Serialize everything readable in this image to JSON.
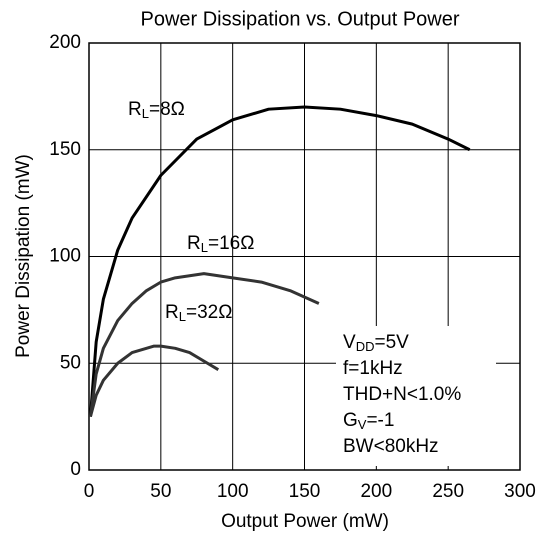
{
  "chart_data": {
    "type": "line",
    "title": "Power Dissipation vs. Output Power",
    "x_label": "Output Power (mW)",
    "y_label": "Power Dissipation (mW)",
    "xlim": [
      0,
      300
    ],
    "xticks": [
      0,
      50,
      100,
      150,
      200,
      250,
      300
    ],
    "ylim": [
      0,
      200
    ],
    "yticks": [
      0,
      50,
      100,
      150,
      200
    ],
    "grid": true,
    "series": [
      {
        "name": [
          {
            "text": "R"
          },
          {
            "text": "L",
            "sub": true
          },
          {
            "text": "=8Ω"
          }
        ],
        "color": "#000000",
        "x": [
          1,
          5,
          10,
          20,
          30,
          50,
          75,
          100,
          125,
          150,
          175,
          200,
          225,
          250,
          265
        ],
        "values": [
          25,
          60,
          80,
          103,
          118,
          138,
          155,
          164,
          169,
          170,
          169,
          166,
          162,
          155,
          150
        ]
      },
      {
        "name": [
          {
            "text": "R"
          },
          {
            "text": "L",
            "sub": true
          },
          {
            "text": "=16Ω"
          }
        ],
        "color": "#333333",
        "x": [
          1,
          5,
          10,
          20,
          30,
          40,
          50,
          60,
          70,
          80,
          90,
          100,
          120,
          140,
          160
        ],
        "values": [
          25,
          45,
          57,
          70,
          78,
          84,
          88,
          90,
          91,
          92,
          91,
          90,
          88,
          84,
          78
        ]
      },
      {
        "name": [
          {
            "text": "R"
          },
          {
            "text": "L",
            "sub": true
          },
          {
            "text": "=32Ω"
          }
        ],
        "color": "#333333",
        "x": [
          1,
          5,
          10,
          20,
          30,
          40,
          45,
          50,
          60,
          70,
          80,
          90
        ],
        "values": [
          25,
          35,
          42,
          50,
          55,
          57,
          58,
          58,
          57,
          55,
          51,
          47
        ]
      }
    ],
    "notes": [
      [
        {
          "text": "V"
        },
        {
          "text": "DD",
          "sub": true
        },
        {
          "text": "=5V"
        }
      ],
      [
        {
          "text": "f=1kHz"
        }
      ],
      [
        {
          "text": "THD+N<1.0%"
        }
      ],
      [
        {
          "text": "G"
        },
        {
          "text": "V",
          "sub": true
        },
        {
          "text": "=-1"
        }
      ],
      [
        {
          "text": "BW<80kHz"
        }
      ]
    ]
  }
}
